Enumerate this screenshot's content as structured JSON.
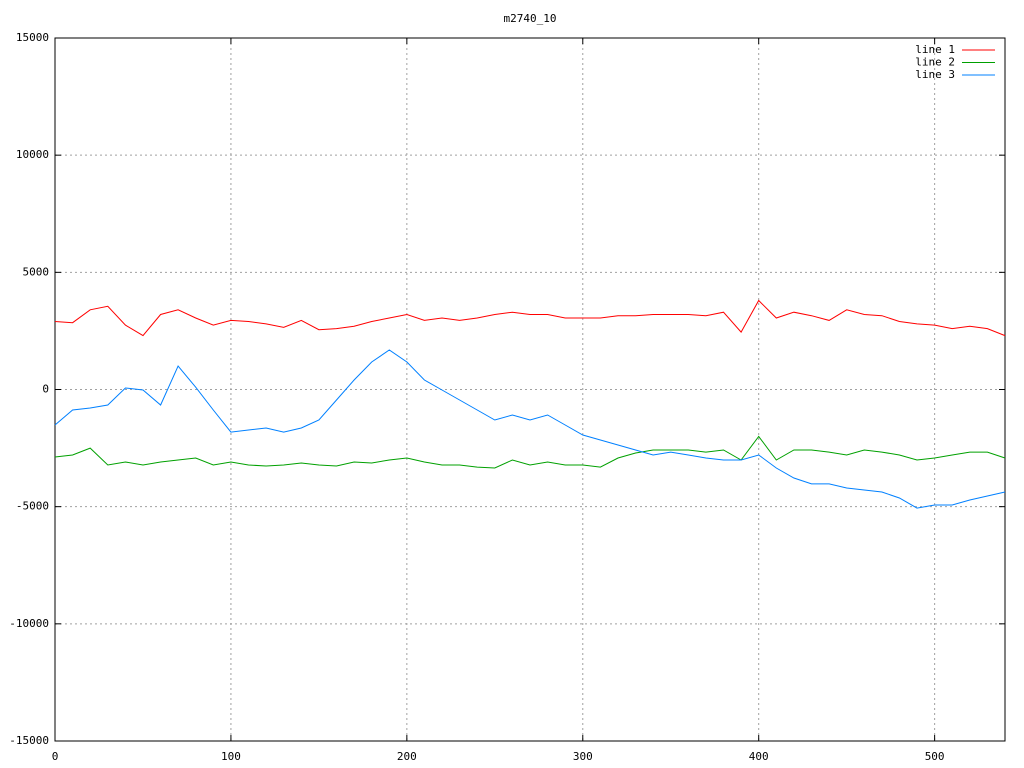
{
  "chart_data": {
    "type": "line",
    "title": "m2740_10",
    "x": [
      0,
      10,
      20,
      30,
      40,
      50,
      60,
      70,
      80,
      90,
      100,
      110,
      120,
      130,
      140,
      150,
      160,
      170,
      180,
      190,
      200,
      210,
      220,
      230,
      240,
      250,
      260,
      270,
      280,
      290,
      300,
      310,
      320,
      330,
      340,
      350,
      360,
      370,
      380,
      390,
      400,
      410,
      420,
      430,
      440,
      450,
      460,
      470,
      480,
      490,
      500,
      510,
      520,
      530,
      540
    ],
    "series": [
      {
        "name": "line 1",
        "color": "#ff0000",
        "values": [
          2900,
          2850,
          3400,
          3550,
          2750,
          2300,
          3200,
          3400,
          3050,
          2750,
          2950,
          2900,
          2800,
          2650,
          2950,
          2550,
          2600,
          2700,
          2900,
          3050,
          3200,
          2950,
          3050,
          2950,
          3050,
          3200,
          3300,
          3200,
          3200,
          3050,
          3050,
          3050,
          3150,
          3150,
          3200,
          3200,
          3200,
          3150,
          3300,
          2450,
          3800,
          3050,
          3300,
          3150,
          2950,
          3400,
          3200,
          3150,
          2900,
          2800,
          2750,
          2600,
          2700,
          2600,
          2300
        ]
      },
      {
        "name": "line 2",
        "color": "#00a000",
        "values": [
          -2880,
          -2795,
          -2500,
          -3220,
          -3095,
          -3220,
          -3095,
          -3010,
          -2925,
          -3220,
          -3095,
          -3220,
          -3265,
          -3220,
          -3135,
          -3220,
          -3265,
          -3095,
          -3135,
          -3010,
          -2925,
          -3095,
          -3220,
          -3220,
          -3310,
          -3350,
          -3010,
          -3220,
          -3095,
          -3220,
          -3220,
          -3310,
          -2925,
          -2710,
          -2580,
          -2580,
          -2580,
          -2670,
          -2580,
          -3010,
          -2000,
          -3010,
          -2580,
          -2580,
          -2670,
          -2795,
          -2580,
          -2670,
          -2795,
          -3010,
          -2925,
          -2795,
          -2670,
          -2670,
          -2925
        ]
      },
      {
        "name": "line 3",
        "color": "#0080ff",
        "values": [
          -1515,
          -875,
          -790,
          -660,
          65,
          -20,
          -660,
          1000,
          100,
          -875,
          -1820,
          -1730,
          -1645,
          -1820,
          -1645,
          -1300,
          -450,
          405,
          1175,
          1685,
          1175,
          405,
          -20,
          -450,
          -875,
          -1300,
          -1090,
          -1300,
          -1090,
          -1515,
          -1940,
          -2155,
          -2370,
          -2580,
          -2795,
          -2670,
          -2795,
          -2925,
          -3010,
          -3010,
          -2795,
          -3350,
          -3775,
          -4030,
          -4030,
          -4205,
          -4290,
          -4375,
          -4630,
          -5060,
          -4930,
          -4930,
          -4715,
          -4545,
          -4375
        ]
      }
    ],
    "xlim": [
      0,
      540
    ],
    "xticks": [
      0,
      100,
      200,
      300,
      400,
      500
    ],
    "ylim": [
      -15000,
      15000
    ],
    "yticks": [
      -15000,
      -10000,
      -5000,
      0,
      5000,
      10000,
      15000
    ],
    "grid": true,
    "legend": "top-right"
  }
}
